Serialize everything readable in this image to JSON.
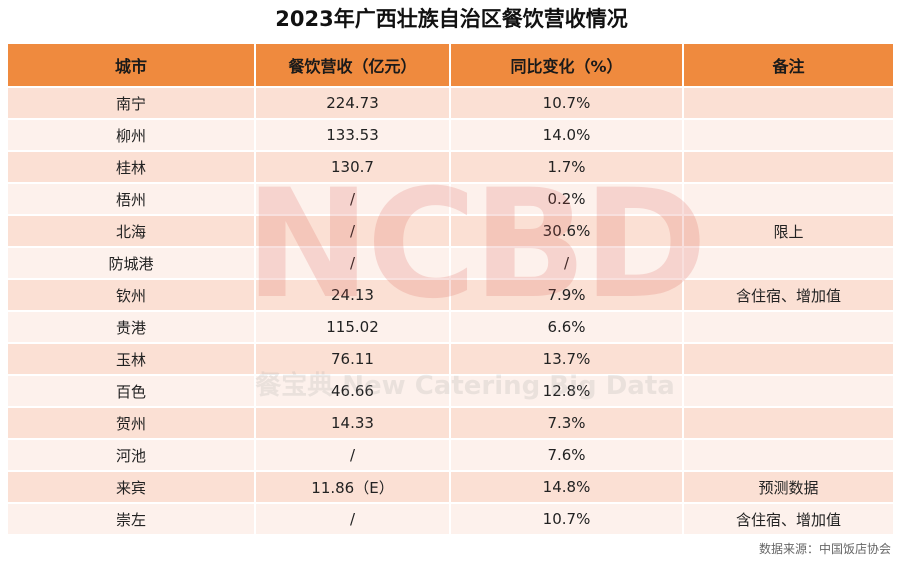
{
  "title": "2023年广西壮族自治区餐饮营收情况",
  "table": {
    "headers": [
      "城市",
      "餐饮营收（亿元）",
      "同比变化（%）",
      "备注"
    ],
    "rows": [
      [
        "南宁",
        "224.73",
        "10.7%",
        ""
      ],
      [
        "柳州",
        "133.53",
        "14.0%",
        ""
      ],
      [
        "桂林",
        "130.7",
        "1.7%",
        ""
      ],
      [
        "梧州",
        "/",
        "0.2%",
        ""
      ],
      [
        "北海",
        "/",
        "30.6%",
        "限上"
      ],
      [
        "防城港",
        "/",
        "/",
        ""
      ],
      [
        "钦州",
        "24.13",
        "7.9%",
        "含住宿、增加值"
      ],
      [
        "贵港",
        "115.02",
        "6.6%",
        ""
      ],
      [
        "玉林",
        "76.11",
        "13.7%",
        ""
      ],
      [
        "百色",
        "46.66",
        "12.8%",
        ""
      ],
      [
        "贺州",
        "14.33",
        "7.3%",
        ""
      ],
      [
        "河池",
        "/",
        "7.6%",
        ""
      ],
      [
        "来宾",
        "11.86（E）",
        "14.8%",
        "预测数据"
      ],
      [
        "崇左",
        "/",
        "10.7%",
        "含住宿、增加值"
      ]
    ]
  },
  "watermark": {
    "logo_text": "NCBD",
    "tagline": "餐宝典 New Catering Big Data"
  },
  "source": "数据来源：中国饭店协会",
  "colors": {
    "header_bg": "#ef8a3e",
    "row_odd": "#fbe0d4",
    "row_even": "#fdf1ec"
  }
}
